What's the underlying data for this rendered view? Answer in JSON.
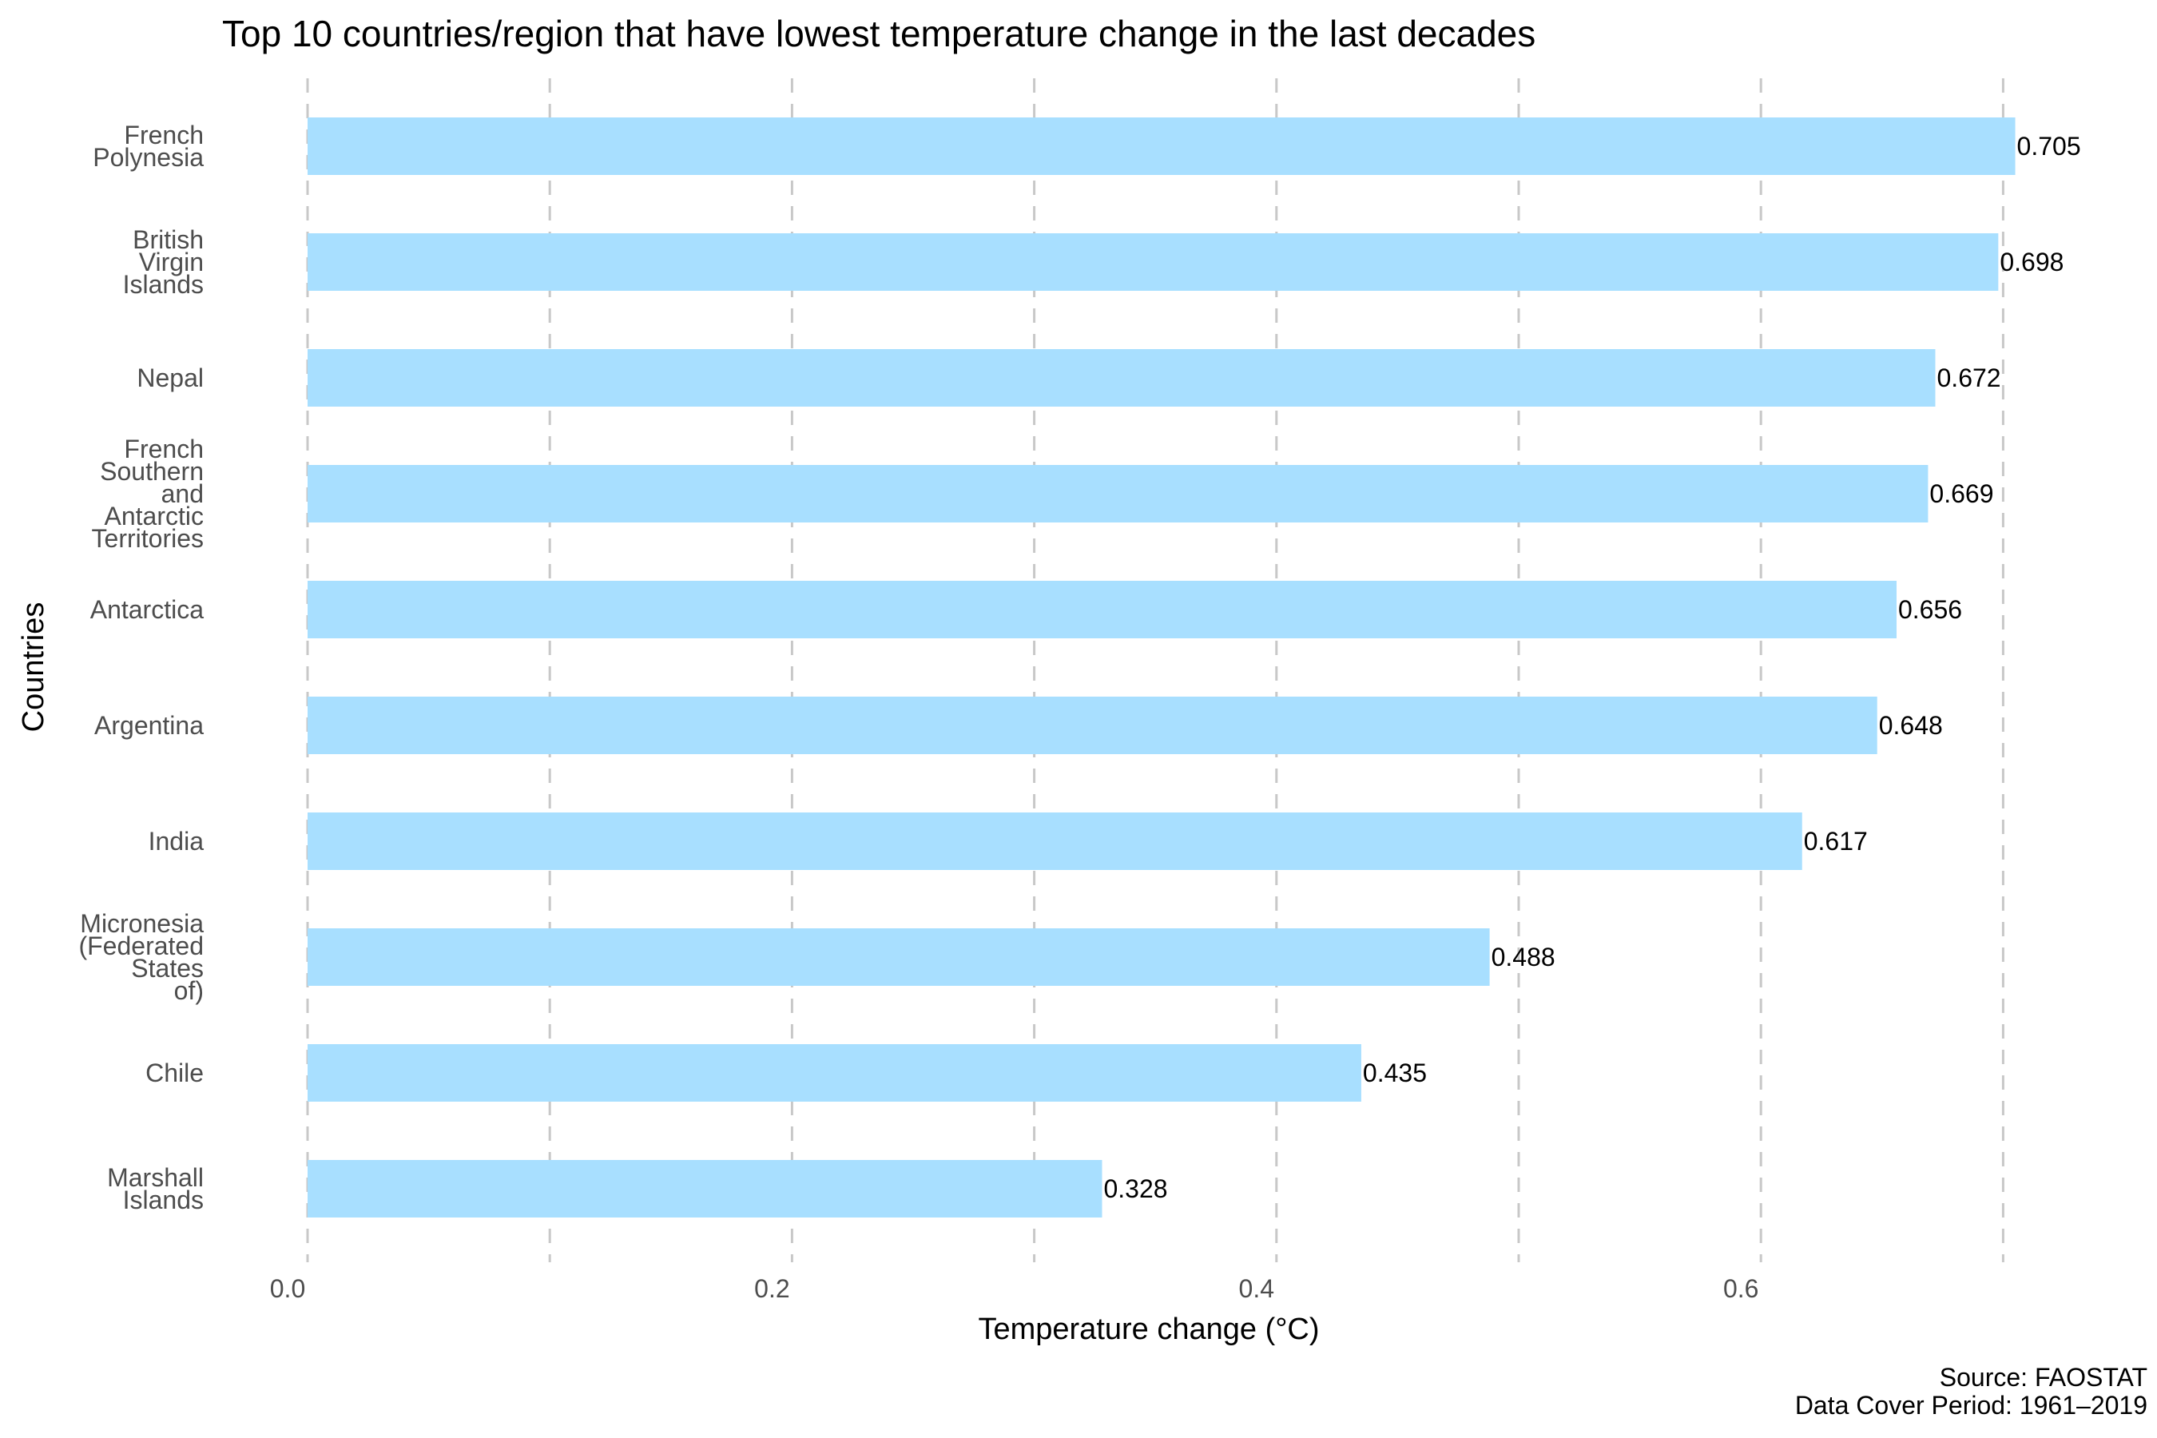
{
  "chart_data": {
    "type": "bar",
    "orientation": "horizontal",
    "title": "Top 10 countries/region that have lowest temperature change in the last decades",
    "xlabel": "Temperature change (°C)",
    "ylabel": "Countries",
    "xlim": [
      0,
      0.72
    ],
    "x_ticks": [
      "0.0",
      "0.2",
      "0.4",
      "0.6"
    ],
    "grid": "vertical dashed",
    "bar_color": "#a8dfff",
    "categories": [
      "French Polynesia",
      "British Virgin Islands",
      "Nepal",
      "French Southern and Antarctic Territories",
      "Antarctica",
      "Argentina",
      "India",
      "Micronesia (Federated States of)",
      "Chile",
      "Marshall Islands"
    ],
    "category_label_lines": [
      [
        "French",
        "Polynesia"
      ],
      [
        "British",
        "Virgin",
        "Islands"
      ],
      [
        "Nepal"
      ],
      [
        "French",
        "Southern",
        "and",
        "Antarctic",
        "Territories"
      ],
      [
        "Antarctica"
      ],
      [
        "Argentina"
      ],
      [
        "India"
      ],
      [
        "Micronesia",
        "(Federated",
        "States",
        "of)"
      ],
      [
        "Chile"
      ],
      [
        "Marshall",
        "Islands"
      ]
    ],
    "values": [
      0.705,
      0.698,
      0.672,
      0.669,
      0.656,
      0.648,
      0.617,
      0.488,
      0.435,
      0.328
    ],
    "value_labels": [
      "0.705",
      "0.698",
      "0.672",
      "0.669",
      "0.656",
      "0.648",
      "0.617",
      "0.488",
      "0.435",
      "0.328"
    ],
    "caption_lines": [
      "Source: FAOSTAT",
      "Data Cover Period: 1961–2019"
    ]
  }
}
